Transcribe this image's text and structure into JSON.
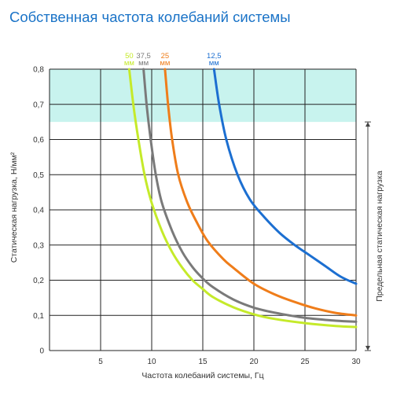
{
  "chart_data": {
    "type": "line",
    "title": "Собственная частота колебаний системы",
    "xlabel": "Частота колебаний системы, Гц",
    "ylabel": "Статическая нагрузка, Н/мм²",
    "right_label": "Предельная статическая нагрузка",
    "xlim": [
      0,
      30
    ],
    "ylim": [
      0,
      0.8
    ],
    "x_ticks": [
      "5",
      "10",
      "15",
      "20",
      "25",
      "30"
    ],
    "y_ticks": [
      "0",
      "0,1",
      "0,2",
      "0,3",
      "0,4",
      "0,5",
      "0,6",
      "0,7",
      "0,8"
    ],
    "grid": true,
    "band": {
      "from": 0.65,
      "to": 0.8,
      "color": "#c8f3ee"
    },
    "series": [
      {
        "name": "50",
        "unit": "мм",
        "color": "#c5ea2a",
        "points": [
          [
            7.8,
            0.8
          ],
          [
            8.2,
            0.7
          ],
          [
            8.7,
            0.6
          ],
          [
            9.3,
            0.5
          ],
          [
            10.0,
            0.42
          ],
          [
            11.0,
            0.34
          ],
          [
            12.0,
            0.28
          ],
          [
            13.0,
            0.235
          ],
          [
            14.0,
            0.2
          ],
          [
            15.0,
            0.175
          ],
          [
            16.0,
            0.152
          ],
          [
            18.0,
            0.123
          ],
          [
            20.0,
            0.103
          ],
          [
            22.0,
            0.09
          ],
          [
            25.0,
            0.078
          ],
          [
            28.0,
            0.07
          ],
          [
            30.0,
            0.067
          ]
        ]
      },
      {
        "name": "37,5",
        "unit": "мм",
        "color": "#7a7a7a",
        "points": [
          [
            9.2,
            0.8
          ],
          [
            9.5,
            0.7
          ],
          [
            9.9,
            0.6
          ],
          [
            10.4,
            0.5
          ],
          [
            11.0,
            0.42
          ],
          [
            12.0,
            0.34
          ],
          [
            13.0,
            0.28
          ],
          [
            14.0,
            0.237
          ],
          [
            15.0,
            0.205
          ],
          [
            16.0,
            0.18
          ],
          [
            18.0,
            0.145
          ],
          [
            20.0,
            0.122
          ],
          [
            22.0,
            0.108
          ],
          [
            25.0,
            0.093
          ],
          [
            28.0,
            0.085
          ],
          [
            30.0,
            0.082
          ]
        ]
      },
      {
        "name": "25",
        "unit": "мм",
        "color": "#ef7d1a",
        "points": [
          [
            11.3,
            0.8
          ],
          [
            11.6,
            0.7
          ],
          [
            12.0,
            0.6
          ],
          [
            12.6,
            0.5
          ],
          [
            13.5,
            0.42
          ],
          [
            14.5,
            0.36
          ],
          [
            15.5,
            0.31
          ],
          [
            17.0,
            0.26
          ],
          [
            18.0,
            0.235
          ],
          [
            20.0,
            0.19
          ],
          [
            22.0,
            0.16
          ],
          [
            24.0,
            0.138
          ],
          [
            26.0,
            0.12
          ],
          [
            28.0,
            0.107
          ],
          [
            30.0,
            0.1
          ]
        ]
      },
      {
        "name": "12,5",
        "unit": "мм",
        "color": "#1c6fd1",
        "points": [
          [
            16.1,
            0.8
          ],
          [
            16.6,
            0.7
          ],
          [
            17.3,
            0.6
          ],
          [
            18.4,
            0.5
          ],
          [
            19.6,
            0.43
          ],
          [
            21.0,
            0.38
          ],
          [
            22.5,
            0.335
          ],
          [
            24.0,
            0.3
          ],
          [
            25.5,
            0.27
          ],
          [
            27.0,
            0.24
          ],
          [
            28.5,
            0.21
          ],
          [
            30.0,
            0.19
          ]
        ]
      }
    ]
  }
}
